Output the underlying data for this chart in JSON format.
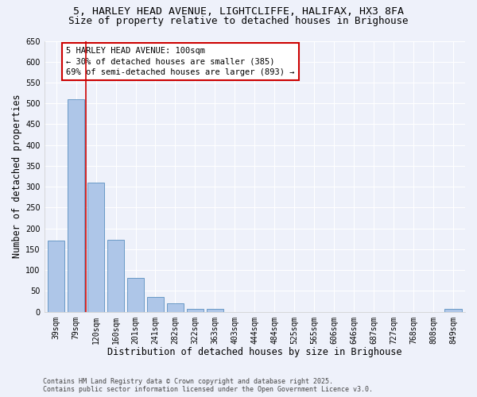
{
  "title_line1": "5, HARLEY HEAD AVENUE, LIGHTCLIFFE, HALIFAX, HX3 8FA",
  "title_line2": "Size of property relative to detached houses in Brighouse",
  "xlabel": "Distribution of detached houses by size in Brighouse",
  "ylabel": "Number of detached properties",
  "categories": [
    "39sqm",
    "79sqm",
    "120sqm",
    "160sqm",
    "201sqm",
    "241sqm",
    "282sqm",
    "322sqm",
    "363sqm",
    "403sqm",
    "444sqm",
    "484sqm",
    "525sqm",
    "565sqm",
    "606sqm",
    "646sqm",
    "687sqm",
    "727sqm",
    "768sqm",
    "808sqm",
    "849sqm"
  ],
  "values": [
    170,
    510,
    310,
    172,
    82,
    35,
    20,
    8,
    8,
    0,
    0,
    0,
    0,
    0,
    0,
    0,
    0,
    0,
    0,
    0,
    7
  ],
  "bar_color": "#aec6e8",
  "bar_edge_color": "#5a8fc0",
  "annotation_line1": "5 HARLEY HEAD AVENUE: 100sqm",
  "annotation_line2": "← 30% of detached houses are smaller (385)",
  "annotation_line3": "69% of semi-detached houses are larger (893) →",
  "annotation_box_color": "#ffffff",
  "annotation_box_edge_color": "#cc0000",
  "vline_x_index": 1.5,
  "vline_color": "#cc0000",
  "ylim": [
    0,
    650
  ],
  "yticks": [
    0,
    50,
    100,
    150,
    200,
    250,
    300,
    350,
    400,
    450,
    500,
    550,
    600,
    650
  ],
  "footer_text": "Contains HM Land Registry data © Crown copyright and database right 2025.\nContains public sector information licensed under the Open Government Licence v3.0.",
  "background_color": "#eef1fa",
  "grid_color": "#ffffff",
  "title_fontsize": 9.5,
  "axis_label_fontsize": 8.5,
  "tick_fontsize": 7,
  "annotation_fontsize": 7.5,
  "footer_fontsize": 6
}
